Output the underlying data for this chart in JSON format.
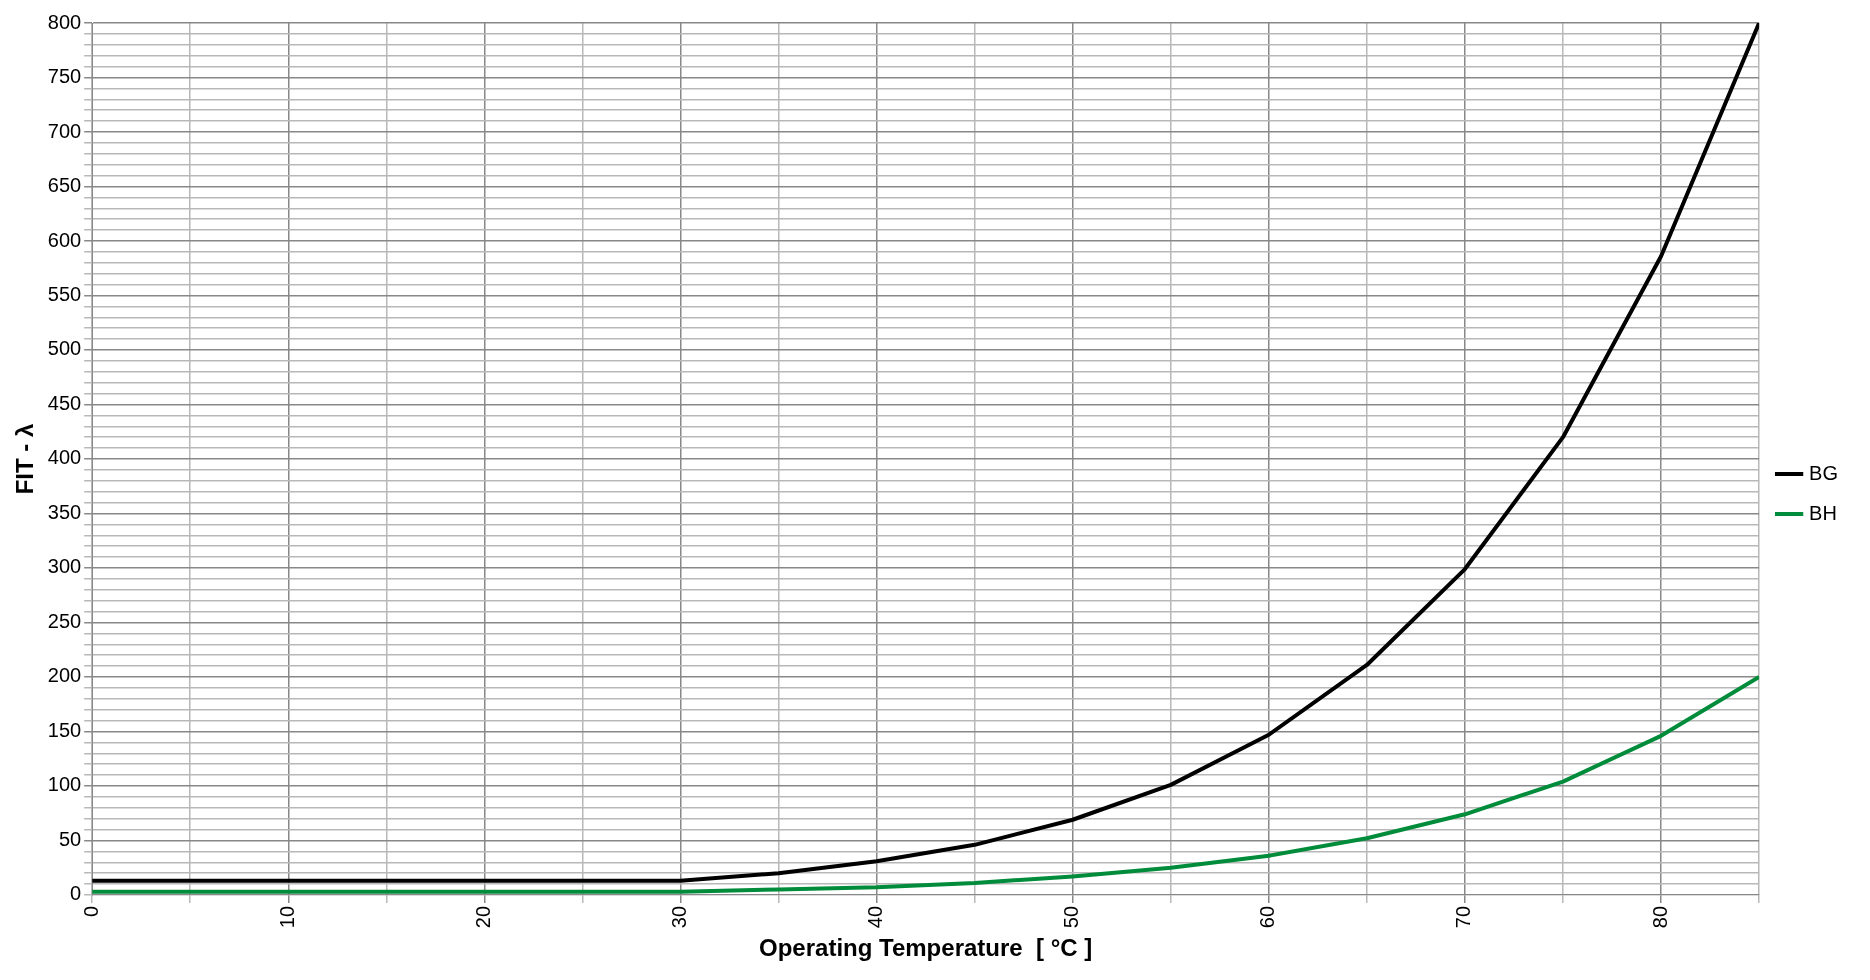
{
  "chart_data": {
    "type": "line",
    "xlabel": "Operating Temperature  [ °C ]",
    "ylabel": "FIT - λ",
    "x": [
      0,
      5,
      10,
      15,
      20,
      25,
      30,
      35,
      40,
      45,
      50,
      55,
      60,
      65,
      70,
      75,
      80,
      85
    ],
    "series": [
      {
        "name": "BG",
        "color": "#000000",
        "values": [
          13,
          13,
          13,
          13,
          13,
          13,
          13,
          20,
          31,
          46,
          69,
          101,
          147,
          211,
          299,
          420,
          586,
          800
        ]
      },
      {
        "name": "BH",
        "color": "#008c3a",
        "values": [
          3,
          3,
          3,
          3,
          3,
          3,
          3,
          5,
          7,
          11,
          17,
          25,
          36,
          52,
          74,
          104,
          146,
          200
        ]
      }
    ],
    "xlim": [
      0,
      85
    ],
    "xticks": [
      0,
      {
        "value": 5,
        "label": null
      },
      10,
      {
        "value": 15,
        "label": null
      },
      20,
      {
        "value": 25,
        "label": null
      },
      30,
      {
        "value": 35,
        "label": null
      },
      40,
      {
        "value": 45,
        "label": null
      },
      50,
      {
        "value": 55,
        "label": null
      },
      60,
      {
        "value": 65,
        "label": null
      },
      70,
      {
        "value": 75,
        "label": null
      },
      80,
      {
        "value": 85,
        "label": null
      }
    ],
    "ylim": [
      0,
      800
    ],
    "yticks": [
      0,
      {
        "value": 10,
        "label": null
      },
      {
        "value": 20,
        "label": null
      },
      {
        "value": 30,
        "label": null
      },
      {
        "value": 40,
        "label": null
      },
      50,
      {
        "value": 60,
        "label": null
      },
      {
        "value": 70,
        "label": null
      },
      {
        "value": 80,
        "label": null
      },
      {
        "value": 90,
        "label": null
      },
      100,
      {
        "value": 110,
        "label": null
      },
      {
        "value": 120,
        "label": null
      },
      {
        "value": 130,
        "label": null
      },
      {
        "value": 140,
        "label": null
      },
      150,
      {
        "value": 160,
        "label": null
      },
      {
        "value": 170,
        "label": null
      },
      {
        "value": 180,
        "label": null
      },
      {
        "value": 190,
        "label": null
      },
      200,
      {
        "value": 210,
        "label": null
      },
      {
        "value": 220,
        "label": null
      },
      {
        "value": 230,
        "label": null
      },
      {
        "value": 240,
        "label": null
      },
      250,
      {
        "value": 260,
        "label": null
      },
      {
        "value": 270,
        "label": null
      },
      {
        "value": 280,
        "label": null
      },
      {
        "value": 290,
        "label": null
      },
      300,
      {
        "value": 310,
        "label": null
      },
      {
        "value": 320,
        "label": null
      },
      {
        "value": 330,
        "label": null
      },
      {
        "value": 340,
        "label": null
      },
      350,
      {
        "value": 360,
        "label": null
      },
      {
        "value": 370,
        "label": null
      },
      {
        "value": 380,
        "label": null
      },
      {
        "value": 390,
        "label": null
      },
      400,
      {
        "value": 410,
        "label": null
      },
      {
        "value": 420,
        "label": null
      },
      {
        "value": 430,
        "label": null
      },
      {
        "value": 440,
        "label": null
      },
      450,
      {
        "value": 460,
        "label": null
      },
      {
        "value": 470,
        "label": null
      },
      {
        "value": 480,
        "label": null
      },
      {
        "value": 490,
        "label": null
      },
      500,
      {
        "value": 510,
        "label": null
      },
      {
        "value": 520,
        "label": null
      },
      {
        "value": 530,
        "label": null
      },
      {
        "value": 540,
        "label": null
      },
      550,
      {
        "value": 560,
        "label": null
      },
      {
        "value": 570,
        "label": null
      },
      {
        "value": 580,
        "label": null
      },
      {
        "value": 590,
        "label": null
      },
      600,
      {
        "value": 610,
        "label": null
      },
      {
        "value": 620,
        "label": null
      },
      {
        "value": 630,
        "label": null
      },
      {
        "value": 640,
        "label": null
      },
      650,
      {
        "value": 660,
        "label": null
      },
      {
        "value": 670,
        "label": null
      },
      {
        "value": 680,
        "label": null
      },
      {
        "value": 690,
        "label": null
      },
      700,
      {
        "value": 710,
        "label": null
      },
      {
        "value": 720,
        "label": null
      },
      {
        "value": 730,
        "label": null
      },
      {
        "value": 740,
        "label": null
      },
      750,
      {
        "value": 760,
        "label": null
      },
      {
        "value": 770,
        "label": null
      },
      {
        "value": 780,
        "label": null
      },
      {
        "value": 790,
        "label": null
      },
      800
    ],
    "grid": true,
    "legend": "right",
    "marker": "none",
    "line_style": "solid"
  }
}
